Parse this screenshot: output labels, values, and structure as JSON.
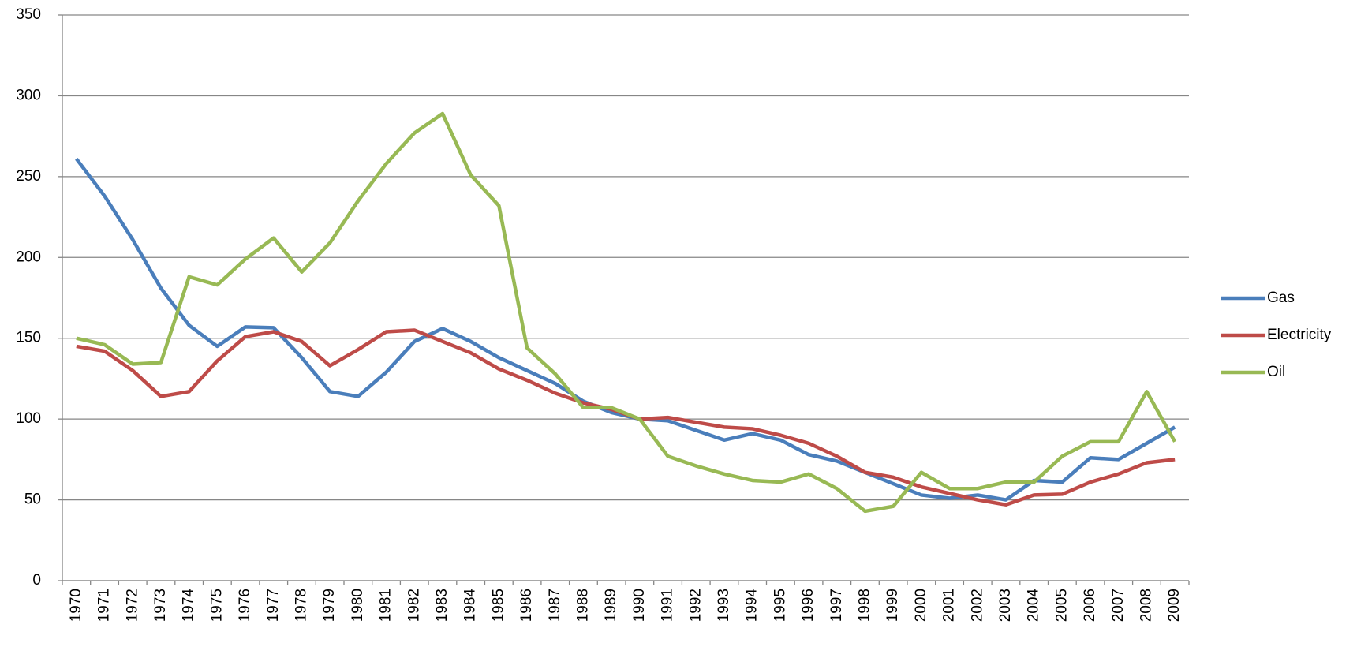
{
  "chart_data": {
    "type": "line",
    "categories": [
      "1970",
      "1971",
      "1972",
      "1973",
      "1974",
      "1975",
      "1976",
      "1977",
      "1978",
      "1979",
      "1980",
      "1981",
      "1982",
      "1983",
      "1984",
      "1985",
      "1986",
      "1987",
      "1988",
      "1989",
      "1990",
      "1991",
      "1992",
      "1993",
      "1994",
      "1995",
      "1996",
      "1997",
      "1998",
      "1999",
      "2000",
      "2001",
      "2002",
      "2003",
      "2004",
      "2005",
      "2006",
      "2007",
      "2008",
      "2009"
    ],
    "series": [
      {
        "name": "Gas",
        "color": "#4a7ebb",
        "values": [
          261,
          238,
          211,
          181,
          158,
          145,
          157,
          156.5,
          138,
          117,
          114,
          129,
          148,
          156,
          148,
          138,
          130,
          122,
          111,
          104,
          100,
          99,
          93,
          87,
          91,
          87,
          78,
          74,
          67,
          60,
          53,
          51,
          53,
          50,
          62,
          61,
          76,
          75,
          85,
          95
        ]
      },
      {
        "name": "Electricity",
        "color": "#be4b48",
        "values": [
          145,
          142,
          130,
          114,
          117,
          136,
          151,
          154,
          148,
          133,
          143,
          154,
          155,
          148,
          141,
          131,
          124,
          116,
          110,
          106,
          100,
          101,
          98,
          95,
          94,
          90,
          85,
          77,
          67,
          64,
          58,
          54,
          50,
          47,
          53,
          53.5,
          61,
          66,
          73,
          75
        ]
      },
      {
        "name": "Oil",
        "color": "#98b954",
        "values": [
          150,
          146,
          134,
          135,
          188,
          183,
          199,
          212,
          191,
          209,
          235,
          258,
          277,
          289,
          251,
          232,
          144,
          128,
          107,
          107,
          100,
          77,
          71,
          66,
          62,
          61,
          66,
          57,
          43,
          46,
          67,
          57,
          57,
          61,
          61,
          77,
          86,
          86,
          117,
          86
        ]
      }
    ],
    "ylim": [
      0,
      350
    ],
    "yticks": [
      0,
      50,
      100,
      150,
      200,
      250,
      300,
      350
    ],
    "grid": true,
    "legend": "right"
  }
}
